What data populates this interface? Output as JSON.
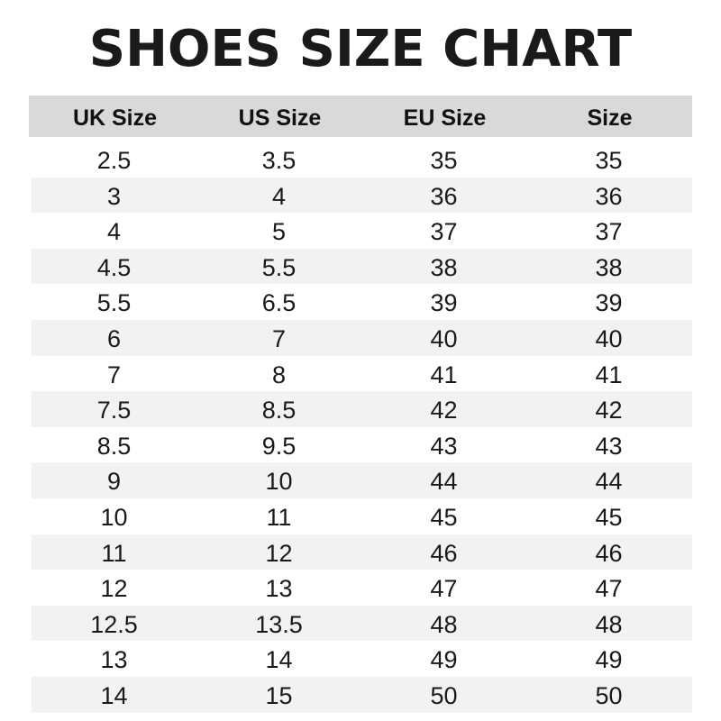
{
  "title": "SHOES SIZE CHART",
  "headers": [
    "UK Size",
    "US Size",
    "EU Size",
    "Size"
  ],
  "rows": [
    [
      "2.5",
      "3.5",
      "35",
      "35"
    ],
    [
      "3",
      "4",
      "36",
      "36"
    ],
    [
      "4",
      "5",
      "37",
      "37"
    ],
    [
      "4.5",
      "5.5",
      "38",
      "38"
    ],
    [
      "5.5",
      "6.5",
      "39",
      "39"
    ],
    [
      "6",
      "7",
      "40",
      "40"
    ],
    [
      "7",
      "8",
      "41",
      "41"
    ],
    [
      "7.5",
      "8.5",
      "42",
      "42"
    ],
    [
      "8.5",
      "9.5",
      "43",
      "43"
    ],
    [
      "9",
      "10",
      "44",
      "44"
    ],
    [
      "10",
      "11",
      "45",
      "45"
    ],
    [
      "11",
      "12",
      "46",
      "46"
    ],
    [
      "12",
      "13",
      "47",
      "47"
    ],
    [
      "12.5",
      "13.5",
      "48",
      "48"
    ],
    [
      "13",
      "14",
      "49",
      "49"
    ],
    [
      "14",
      "15",
      "50",
      "50"
    ]
  ]
}
